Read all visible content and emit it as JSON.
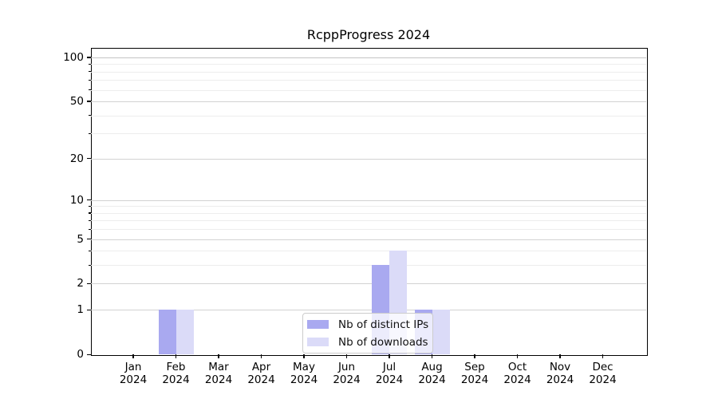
{
  "figure": {
    "background": "#ffffff",
    "axis_color": "#000000",
    "grid_major_color": "#d2d2d2",
    "grid_minor_color": "#ededed",
    "grid_top_color": "#c4c4c4"
  },
  "chart_data": {
    "type": "bar",
    "title": "RcppProgress 2024",
    "categories": [
      "Jan",
      "Feb",
      "Mar",
      "Apr",
      "May",
      "Jun",
      "Jul",
      "Aug",
      "Sep",
      "Oct",
      "Nov",
      "Dec"
    ],
    "category_year": "2024",
    "series": [
      {
        "name": "Nb of distinct IPs",
        "color": "#a9a9f0",
        "values": [
          0,
          1,
          0,
          0,
          0,
          0,
          3,
          1,
          0,
          0,
          0,
          0
        ]
      },
      {
        "name": "Nb of downloads",
        "color": "#dbdbf8",
        "values": [
          0,
          1,
          0,
          0,
          0,
          0,
          4,
          1,
          0,
          0,
          0,
          0
        ]
      }
    ],
    "xlabel": "",
    "ylabel": "",
    "yscale": "log1p",
    "ylim": [
      0,
      116
    ],
    "ytick_values": [
      0,
      1,
      2,
      5,
      10,
      20,
      50,
      100
    ],
    "ytick_labels": [
      "0",
      "1",
      "2",
      "5",
      "10",
      "20",
      "50",
      "100"
    ],
    "minor_grid_values": [
      3,
      4,
      6,
      7,
      8,
      9,
      30,
      40,
      60,
      70,
      80,
      90
    ],
    "grid": true,
    "legend_position": "lower center"
  }
}
